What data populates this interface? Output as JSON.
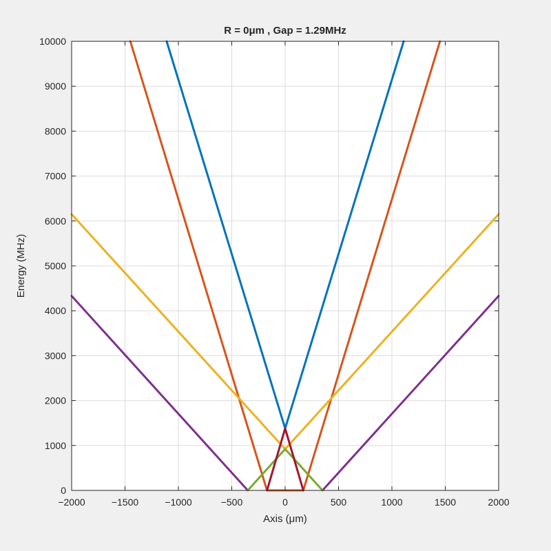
{
  "chart_data": {
    "type": "line",
    "title": "R =    0μm , Gap = 1.29MHz",
    "xlabel": "Axis (μm)",
    "ylabel": "Energy (MHz)",
    "xlim": [
      -2000,
      2000
    ],
    "ylim": [
      0,
      10000
    ],
    "xticks": [
      -2000,
      -1500,
      -1000,
      -500,
      0,
      500,
      1000,
      1500,
      2000
    ],
    "yticks": [
      0,
      1000,
      2000,
      3000,
      4000,
      5000,
      6000,
      7000,
      8000,
      9000,
      10000
    ],
    "grid": true,
    "background": "#ffffff",
    "figure_background": "#f0f0f0",
    "series": [
      {
        "color": "#0072bd",
        "x": [
          -1110,
          0,
          1110
        ],
        "y": [
          10000,
          1380,
          10000
        ]
      },
      {
        "color": "#d95319",
        "x": [
          -1450,
          -170,
          -170,
          170,
          170,
          1450
        ],
        "y": [
          10000,
          0,
          0,
          0,
          0,
          10000
        ]
      },
      {
        "color": "#edb120",
        "x": [
          -2000,
          0,
          2000
        ],
        "y": [
          6150,
          920,
          6150
        ]
      },
      {
        "color": "#7e2f8e",
        "x": [
          -2000,
          -350
        ],
        "y": [
          4330,
          0
        ]
      },
      {
        "color": "#7e2f8e",
        "x": [
          350,
          2000
        ],
        "y": [
          0,
          4330
        ]
      },
      {
        "color": "#77ac30",
        "x": [
          -350,
          0,
          350
        ],
        "y": [
          0,
          920,
          0
        ]
      },
      {
        "color": "#a2142f",
        "x": [
          -170,
          0,
          170
        ],
        "y": [
          0,
          1380,
          0
        ]
      }
    ]
  }
}
